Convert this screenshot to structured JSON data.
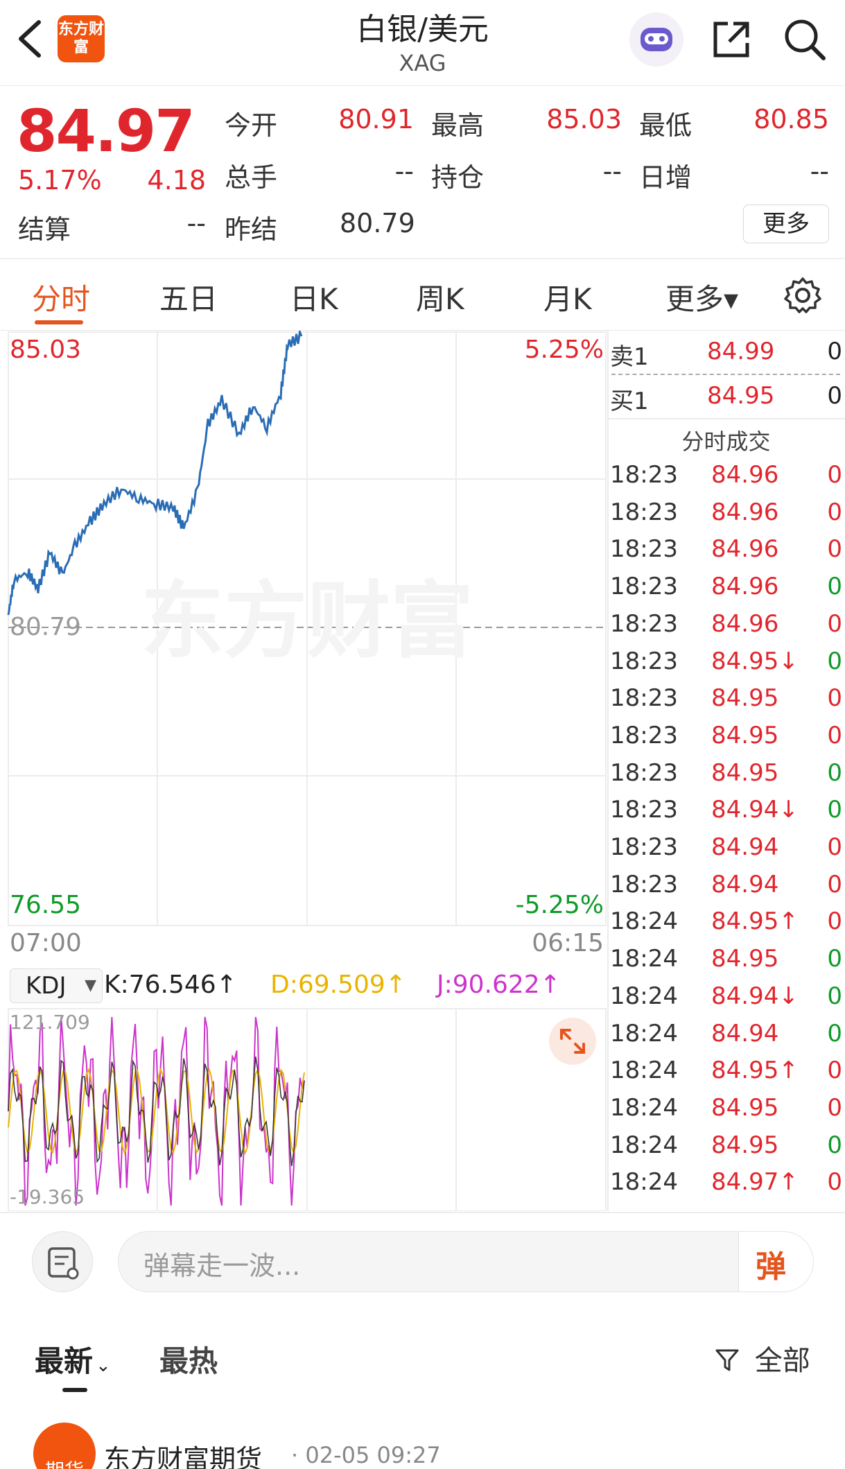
{
  "header": {
    "title": "白银/美元",
    "subtitle": "XAG",
    "logo_text": "东方财富"
  },
  "quote": {
    "price": "84.97",
    "change_pct": "5.17%",
    "change": "4.18",
    "open_label": "今开",
    "open": "80.91",
    "high_label": "最高",
    "high": "85.03",
    "low_label": "最低",
    "low": "80.85",
    "volume_label": "总手",
    "volume": "--",
    "oi_label": "持仓",
    "oi": "--",
    "daily_inc_label": "日增",
    "daily_inc": "--",
    "settle_label": "结算",
    "settle": "--",
    "prev_settle_label": "昨结",
    "prev_settle": "80.79",
    "more_label": "更多"
  },
  "tabs": [
    {
      "label": "分时",
      "active": true
    },
    {
      "label": "五日"
    },
    {
      "label": "日K"
    },
    {
      "label": "周K"
    },
    {
      "label": "月K"
    },
    {
      "label": "更多▾"
    }
  ],
  "chart": {
    "y_top": "85.03",
    "y_mid": "80.79",
    "y_bottom": "76.55",
    "pct_top": "5.25%",
    "pct_bottom": "-5.25%",
    "time_start": "07:00",
    "time_end": "06:15",
    "watermark": "东方财富"
  },
  "indicator": {
    "name": "KDJ",
    "k": "K:76.546↑",
    "d": "D:69.509↑",
    "j": "J:90.622↑",
    "max": "121.709",
    "min": "-19.365",
    "colors": {
      "k": "#222222",
      "d": "#e8b400",
      "j": "#cc33cc"
    }
  },
  "order_book": {
    "sell_label": "卖1",
    "sell_price": "84.99",
    "sell_vol": "0",
    "buy_label": "买1",
    "buy_price": "84.95",
    "buy_vol": "0",
    "header": "分时成交",
    "rows": [
      {
        "time": "18:23",
        "price": "84.96",
        "vol": "0",
        "vc": "red"
      },
      {
        "time": "18:23",
        "price": "84.96",
        "vol": "0",
        "vc": "red"
      },
      {
        "time": "18:23",
        "price": "84.96",
        "vol": "0",
        "vc": "red"
      },
      {
        "time": "18:23",
        "price": "84.96",
        "vol": "0",
        "vc": "green"
      },
      {
        "time": "18:23",
        "price": "84.96",
        "vol": "0",
        "vc": "red"
      },
      {
        "time": "18:23",
        "price": "84.95↓",
        "vol": "0",
        "vc": "green"
      },
      {
        "time": "18:23",
        "price": "84.95",
        "vol": "0",
        "vc": "red"
      },
      {
        "time": "18:23",
        "price": "84.95",
        "vol": "0",
        "vc": "red"
      },
      {
        "time": "18:23",
        "price": "84.95",
        "vol": "0",
        "vc": "green"
      },
      {
        "time": "18:23",
        "price": "84.94↓",
        "vol": "0",
        "vc": "green"
      },
      {
        "time": "18:23",
        "price": "84.94",
        "vol": "0",
        "vc": "red"
      },
      {
        "time": "18:23",
        "price": "84.94",
        "vol": "0",
        "vc": "red"
      },
      {
        "time": "18:24",
        "price": "84.95↑",
        "vol": "0",
        "vc": "red"
      },
      {
        "time": "18:24",
        "price": "84.95",
        "vol": "0",
        "vc": "green"
      },
      {
        "time": "18:24",
        "price": "84.94↓",
        "vol": "0",
        "vc": "green"
      },
      {
        "time": "18:24",
        "price": "84.94",
        "vol": "0",
        "vc": "green"
      },
      {
        "time": "18:24",
        "price": "84.95↑",
        "vol": "0",
        "vc": "red"
      },
      {
        "time": "18:24",
        "price": "84.95",
        "vol": "0",
        "vc": "red"
      },
      {
        "time": "18:24",
        "price": "84.95",
        "vol": "0",
        "vc": "green"
      },
      {
        "time": "18:24",
        "price": "84.97↑",
        "vol": "0",
        "vc": "red"
      }
    ]
  },
  "comment_bar": {
    "placeholder": "弹幕走一波...",
    "button": "弹"
  },
  "feed": {
    "tab_latest": "最新",
    "tab_hot": "最热",
    "filter": "全部",
    "post_author": "东方财富期货",
    "post_time": "· 02-05 09:27",
    "post_avatar_text": "期货"
  },
  "colors": {
    "up": "#e0262d",
    "down": "#0f9a2a",
    "accent": "#e4551e",
    "line": "#2a6db5"
  }
}
